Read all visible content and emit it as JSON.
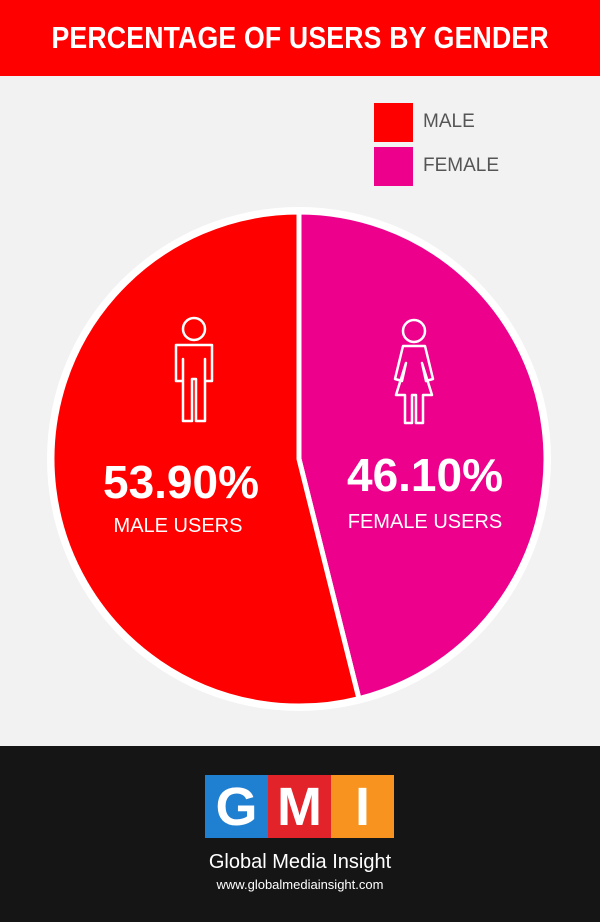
{
  "header": {
    "title": "PERCENTAGE OF USERS BY GENDER"
  },
  "legend": {
    "items": [
      {
        "label": "MALE",
        "color": "#ff0000"
      },
      {
        "label": "FEMALE",
        "color": "#ec008c"
      }
    ]
  },
  "chart_data": {
    "type": "pie",
    "title": "PERCENTAGE OF USERS BY GENDER",
    "legend_position": "top-right",
    "slices": [
      {
        "label": "MALE",
        "value": 53.9,
        "value_label": "53.90%",
        "caption": "MALE USERS",
        "color": "#ff0000",
        "icon": "male-person-icon"
      },
      {
        "label": "FEMALE",
        "value": 46.1,
        "value_label": "46.10%",
        "caption": "FEMALE USERS",
        "color": "#ec008c",
        "icon": "female-person-icon"
      }
    ]
  },
  "footer": {
    "logo_letters": [
      "G",
      "M",
      "I"
    ],
    "logo_colors": [
      "#1f7fd0",
      "#e2232a",
      "#f7931e"
    ],
    "name": "Global Media Insight",
    "url": "www.globalmediainsight.com"
  }
}
